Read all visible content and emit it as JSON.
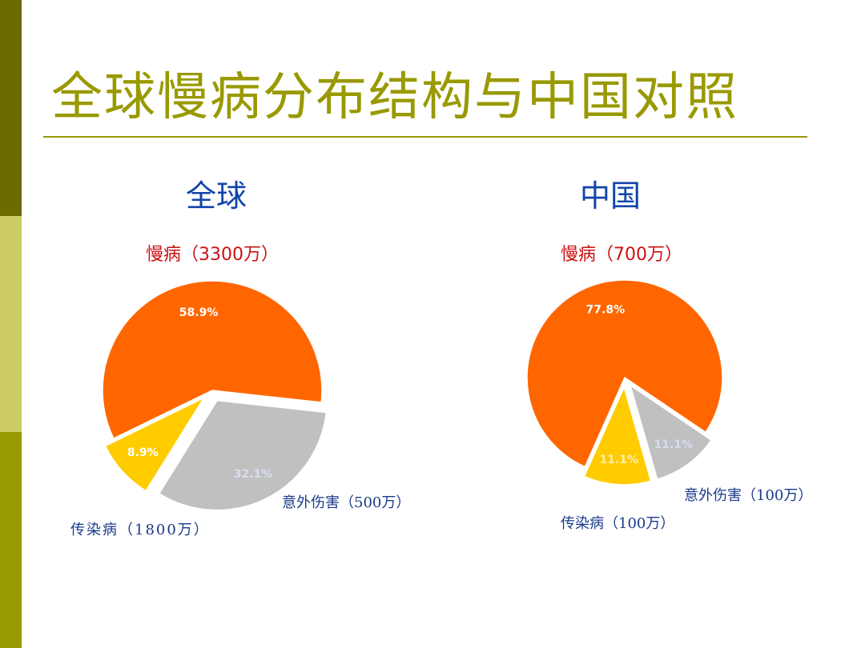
{
  "slide": {
    "title": "全球慢病分布结构与中国对照"
  },
  "colors": {
    "chronic": "#ff6600",
    "infectious": "#c0c0c0",
    "accident": "#ffcc00",
    "title": "#999900",
    "heading": "#1144aa"
  },
  "chart_data": [
    {
      "type": "pie",
      "title": "全球",
      "categories": [
        "慢病（3300万）",
        "传染病（1800万）",
        "意外伤害（500万）"
      ],
      "values": [
        58.9,
        32.1,
        8.9
      ],
      "value_labels": [
        "58.9%",
        "32.1%",
        "8.9%"
      ],
      "exploded": [
        false,
        true,
        true
      ]
    },
    {
      "type": "pie",
      "title": "中国",
      "categories": [
        "慢病（700万）",
        "传染病（100万）",
        "意外伤害（100万）"
      ],
      "values": [
        77.8,
        11.1,
        11.1
      ],
      "value_labels": [
        "77.8%",
        "11.1%",
        "11.1%"
      ],
      "exploded": [
        false,
        true,
        true
      ]
    }
  ]
}
